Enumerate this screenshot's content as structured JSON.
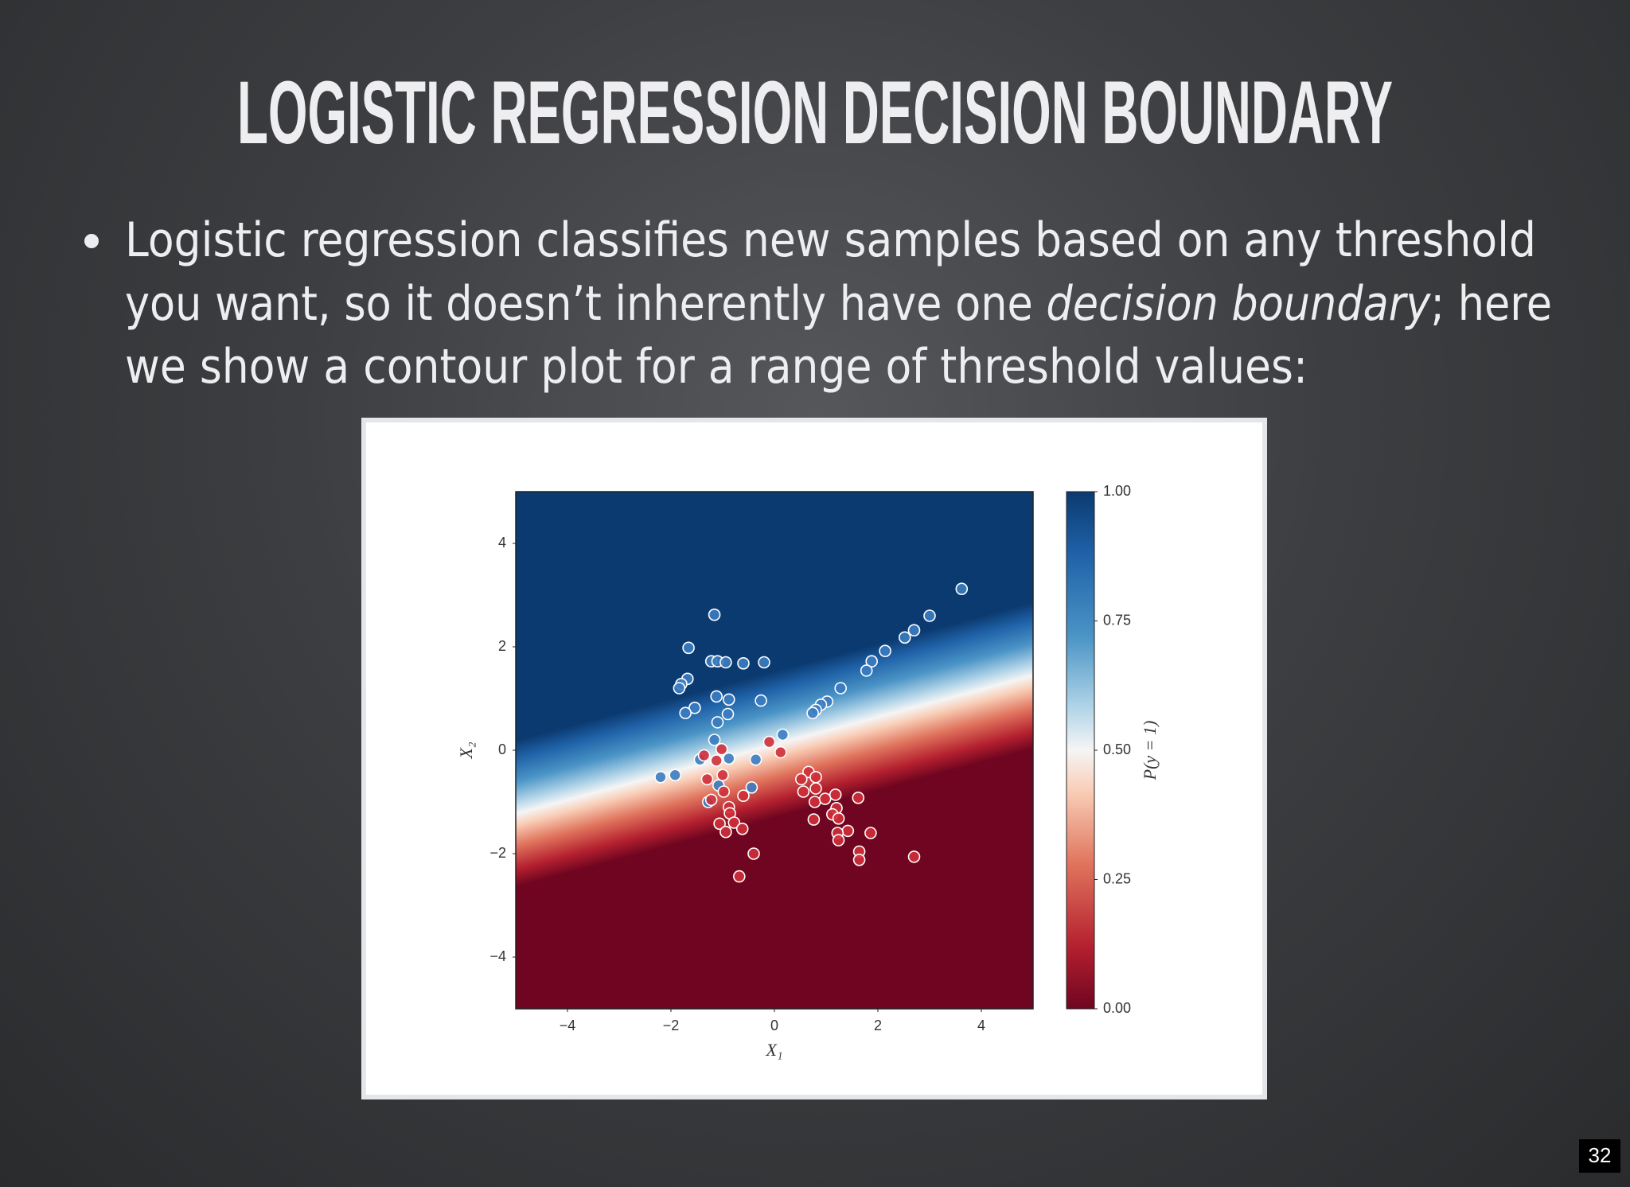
{
  "slide": {
    "title": "LOGISTIC REGRESSION DECISION BOUNDARY",
    "bullet_lines": [
      [
        "Logistic regression classifies new samples based on any threshold"
      ],
      [
        "you want, so it doesn’t inherently have one ",
        "decision boundary",
        "; here"
      ],
      [
        "we show a contour plot for a range of threshold values:"
      ]
    ],
    "page_number": "32"
  },
  "chart_data": {
    "type": "scatter",
    "x_label": "X₁",
    "y_label": "X₂",
    "xlim": [
      -5,
      5
    ],
    "ylim": [
      -5,
      5
    ],
    "xticks": [
      {
        "value": -4,
        "label": "−4"
      },
      {
        "value": -2,
        "label": "−2"
      },
      0,
      2,
      4
    ],
    "yticks": [
      {
        "value": -4,
        "label": "−4"
      },
      {
        "value": -2,
        "label": "−2"
      },
      0,
      2,
      4
    ],
    "grid": false,
    "colorbar": {
      "label": "P(y = 1)",
      "lim": [
        0,
        1
      ],
      "ticks": [
        {
          "value": 0,
          "label": "0.00"
        },
        {
          "value": 0.25,
          "label": "0.25"
        },
        {
          "value": 0.5,
          "label": "0.50"
        },
        {
          "value": 0.75,
          "label": "0.75"
        },
        {
          "value": 1,
          "label": "1.00"
        }
      ]
    },
    "series": [
      {
        "color": "#3b7cc0",
        "x": [
          3.62,
          3.0,
          2.7,
          2.52,
          2.14,
          1.88,
          1.78,
          1.28,
          1.02,
          0.9,
          0.8,
          0.74,
          0.16,
          -1.16,
          -1.66,
          -1.22,
          -1.1,
          -0.94,
          -0.6,
          -0.2,
          -1.68,
          -1.8,
          -1.84,
          -1.12,
          -0.88,
          -0.26,
          -1.54,
          -1.72,
          -0.9,
          -1.1,
          -1.16,
          -0.36,
          -0.88,
          -1.44,
          -1.92,
          -2.2,
          -0.44,
          -1.08,
          -1.28
        ],
        "values": [
          3.12,
          2.6,
          2.32,
          2.18,
          1.92,
          1.72,
          1.54,
          1.2,
          0.94,
          0.88,
          0.78,
          0.72,
          0.3,
          2.62,
          1.98,
          1.72,
          1.72,
          1.7,
          1.68,
          1.7,
          1.38,
          1.28,
          1.2,
          1.04,
          0.98,
          0.96,
          0.82,
          0.72,
          0.7,
          0.54,
          0.2,
          -0.18,
          -0.16,
          -0.18,
          -0.48,
          -0.52,
          -0.72,
          -0.68,
          -1.0
        ]
      },
      {
        "color": "#cf2f38",
        "x": [
          -0.1,
          0.12,
          -1.02,
          -1.36,
          -1.12,
          -1.0,
          -1.3,
          -0.98,
          -1.22,
          -0.88,
          -0.86,
          -0.6,
          -1.06,
          -0.94,
          -0.78,
          -0.62,
          -0.4,
          -0.68,
          0.66,
          0.52,
          0.8,
          0.56,
          0.8,
          0.78,
          0.98,
          1.18,
          1.2,
          1.62,
          1.12,
          0.76,
          1.24,
          1.42,
          1.22,
          1.24,
          1.86,
          1.64,
          1.64,
          2.7
        ],
        "values": [
          0.16,
          -0.04,
          0.02,
          -0.1,
          -0.2,
          -0.48,
          -0.56,
          -0.8,
          -0.96,
          -1.1,
          -1.22,
          -0.88,
          -1.42,
          -1.58,
          -1.4,
          -1.52,
          -2.0,
          -2.44,
          -0.42,
          -0.56,
          -0.52,
          -0.8,
          -0.74,
          -1.0,
          -0.94,
          -0.86,
          -1.12,
          -0.92,
          -1.24,
          -1.34,
          -1.32,
          -1.56,
          -1.6,
          -1.74,
          -1.6,
          -1.96,
          -2.12,
          -2.06
        ]
      }
    ]
  }
}
